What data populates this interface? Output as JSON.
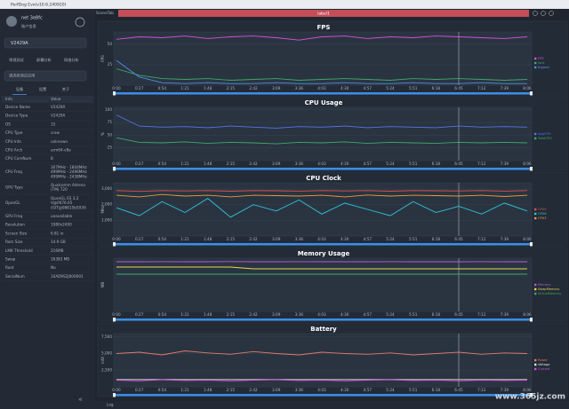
{
  "header": {
    "app_title": "PerfDog Evo(v10.6.240920)"
  },
  "sidebar": {
    "user": "net 3e8fc",
    "account": "账户信息",
    "device": "V2429A",
    "mode_tabs": [
      "常规测试",
      "屏幕分析",
      "网络分析"
    ],
    "app_select": "请选择测试应用",
    "info_tabs": [
      "设备",
      "设置",
      "关于"
    ],
    "table": {
      "columns": [
        "Info",
        "Value"
      ],
      "rows": [
        [
          "Device Name",
          [
            "V2429A"
          ]
        ],
        [
          "Device Type",
          [
            "V2429A"
          ]
        ],
        [
          "OS",
          [
            "15"
          ]
        ],
        [
          "CPU Type",
          [
            "crow"
          ]
        ],
        [
          "CPU Info",
          [
            "unknown"
          ]
        ],
        [
          "CPU Arch",
          [
            "arm64-v8a"
          ]
        ],
        [
          "CPU CoreNum",
          [
            "8"
          ]
        ],
        [
          "CPU Freq",
          [
            "307MHz - 1804MHz",
            "499MHz - 2496MHz",
            "499MHz - 2438MHz"
          ]
        ],
        [
          "GPU Type",
          [
            "Qualcomm Adreno",
            "(TM) 720"
          ]
        ],
        [
          "OpenGL",
          [
            "OpenGL ES 3.2",
            "V@0676.65",
            "(GIT@08815b593f)"
          ]
        ],
        [
          "GPU Freq",
          [
            "unavailable"
          ]
        ],
        [
          "Resolution",
          [
            "1080x2400"
          ]
        ],
        [
          "Screen Size",
          [
            "6.81 in"
          ]
        ],
        [
          "Ram Size",
          [
            "14.9 GB"
          ]
        ],
        [
          "LMK Threshold",
          [
            "216MB"
          ]
        ],
        [
          "Swap",
          [
            "16383 MB"
          ]
        ],
        [
          "Root",
          [
            "No"
          ]
        ],
        [
          "SerialNum",
          [
            "10AD9S2J000091"
          ]
        ]
      ]
    }
  },
  "main": {
    "scene_tab": "SceneTab",
    "label": "label1",
    "log": "Log",
    "watermark": "www.365jz.com"
  },
  "time_axis": [
    "0:00",
    "0:27",
    "0:54",
    "1:21",
    "1:48",
    "2:15",
    "2:42",
    "3:09",
    "3:36",
    "4:03",
    "4:30",
    "4:57",
    "5:24",
    "5:51",
    "6:18",
    "6:45",
    "7:12",
    "7:39",
    "8:06"
  ],
  "chart_data": [
    {
      "type": "line",
      "title": "FPS",
      "ylabel": "FPS",
      "ylim": [
        0,
        65
      ],
      "yticks": [
        25,
        50
      ],
      "series": [
        {
          "name": "FPS",
          "color": "#d84fd8",
          "values": [
            56,
            59,
            58,
            60,
            57,
            59,
            60,
            58,
            55,
            59,
            60,
            57,
            59,
            58,
            60,
            59,
            58,
            57,
            59
          ]
        },
        {
          "name": "Jank",
          "color": "#3fa86a",
          "values": [
            20,
            12,
            8,
            7,
            8,
            6,
            7,
            8,
            6,
            7,
            8,
            7,
            6,
            8,
            7,
            8,
            7,
            6,
            7
          ]
        },
        {
          "name": "BigJank",
          "color": "#4f8ee0",
          "values": [
            30,
            10,
            3,
            2,
            3,
            2,
            2,
            3,
            2,
            2,
            3,
            2,
            2,
            3,
            2,
            2,
            3,
            2,
            2
          ]
        }
      ]
    },
    {
      "type": "line",
      "title": "CPU Usage",
      "ylabel": "%",
      "ylim": [
        0,
        105
      ],
      "yticks": [
        25,
        50,
        75,
        100
      ],
      "series": [
        {
          "name": "AppCPU",
          "color": "#5a72e6",
          "values": [
            90,
            68,
            66,
            67,
            65,
            68,
            66,
            64,
            67,
            66,
            68,
            65,
            67,
            66,
            65,
            68,
            66,
            67,
            66
          ]
        },
        {
          "name": "TotalCPU",
          "color": "#3fa86a",
          "values": [
            45,
            36,
            35,
            37,
            34,
            36,
            35,
            33,
            36,
            35,
            37,
            34,
            36,
            35,
            34,
            36,
            35,
            36,
            35
          ]
        }
      ]
    },
    {
      "type": "line",
      "title": "CPU Clock",
      "ylabel": "MHz",
      "ylim": [
        0,
        3400
      ],
      "yticks": [
        {
          "value": 1000,
          "label": "1,000"
        },
        {
          "value": 2000,
          "label": "2,000"
        },
        {
          "value": 3000,
          "label": "3,000"
        }
      ],
      "series": [
        {
          "name": "CPU0",
          "color": "#e0534a",
          "values": [
            2900,
            2850,
            2900,
            2880,
            2900,
            2860,
            2900,
            2890,
            2870,
            2900,
            2880,
            2900,
            2860,
            2900,
            2890,
            2880,
            2900,
            2870,
            2900
          ]
        },
        {
          "name": "CPU6",
          "color": "#2fc4d8",
          "values": [
            1800,
            1300,
            2200,
            1500,
            2400,
            1200,
            2000,
            1600,
            2300,
            1400,
            2100,
            1700,
            1300,
            2200,
            1500,
            1900,
            1400,
            2100,
            1600
          ]
        },
        {
          "name": "CPU3",
          "color": "#e89a3c",
          "values": [
            2600,
            2500,
            2650,
            2550,
            2600,
            2500,
            2600,
            2580,
            2550,
            2600,
            2500,
            2620,
            2550,
            2600,
            2580,
            2550,
            2600,
            2520,
            2600
          ]
        }
      ]
    },
    {
      "type": "line",
      "title": "Memory Usage",
      "ylabel": "MB",
      "ylim": [
        0,
        6000
      ],
      "yticks": [],
      "series": [
        {
          "name": "Memory",
          "color": "#b55ad8",
          "values": [
            5600,
            5600,
            5610,
            5600,
            5600,
            5620,
            5600,
            5600,
            5610,
            5600,
            5600,
            5600,
            5610,
            5600,
            5600,
            5600,
            5610,
            5600,
            5600
          ]
        },
        {
          "name": "SwapMemory",
          "color": "#e8d84a",
          "values": [
            5000,
            5000,
            5000,
            5000,
            5000,
            5000,
            4800,
            4800,
            4800,
            4800,
            4800,
            4800,
            4800,
            4800,
            4800,
            4800,
            4800,
            4800,
            4800
          ]
        },
        {
          "name": "VirtualMemory",
          "color": "#3fa86a",
          "values": [
            4200,
            4200,
            4200,
            4200,
            4200,
            4200,
            4200,
            4200,
            4200,
            4200,
            4200,
            4200,
            4200,
            4200,
            4200,
            4200,
            4200,
            4200,
            4200
          ]
        }
      ]
    },
    {
      "type": "line",
      "title": "Battery",
      "ylabel": "mW",
      "ylim": [
        0,
        8000
      ],
      "yticks": [
        {
          "value": 2500,
          "label": "2,500"
        },
        {
          "value": 5000,
          "label": "5,000"
        },
        {
          "value": 7500,
          "label": "7,500"
        }
      ],
      "series": [
        {
          "name": "Power",
          "color": "#e07a6a",
          "values": [
            5000,
            5200,
            4800,
            5400,
            5100,
            4900,
            5300,
            5000,
            4800,
            5200,
            5000,
            4900,
            5100,
            4800,
            5000,
            5200,
            4900,
            5100,
            5000
          ]
        },
        {
          "name": "Voltage",
          "color": "#e0e0e0",
          "values": [
            1100,
            1100,
            1100,
            1100,
            1100,
            1100,
            1100,
            1100,
            1100,
            1100,
            1100,
            1100,
            1100,
            1100,
            1100,
            1100,
            1100,
            1100,
            1100
          ]
        },
        {
          "name": "Current",
          "color": "#d84fd8",
          "values": [
            1000,
            900,
            1050,
            950,
            1000,
            900,
            1000,
            1050,
            950,
            1000,
            900,
            1000,
            1050,
            950,
            1000,
            900,
            1000,
            950,
            1000
          ]
        }
      ]
    }
  ]
}
